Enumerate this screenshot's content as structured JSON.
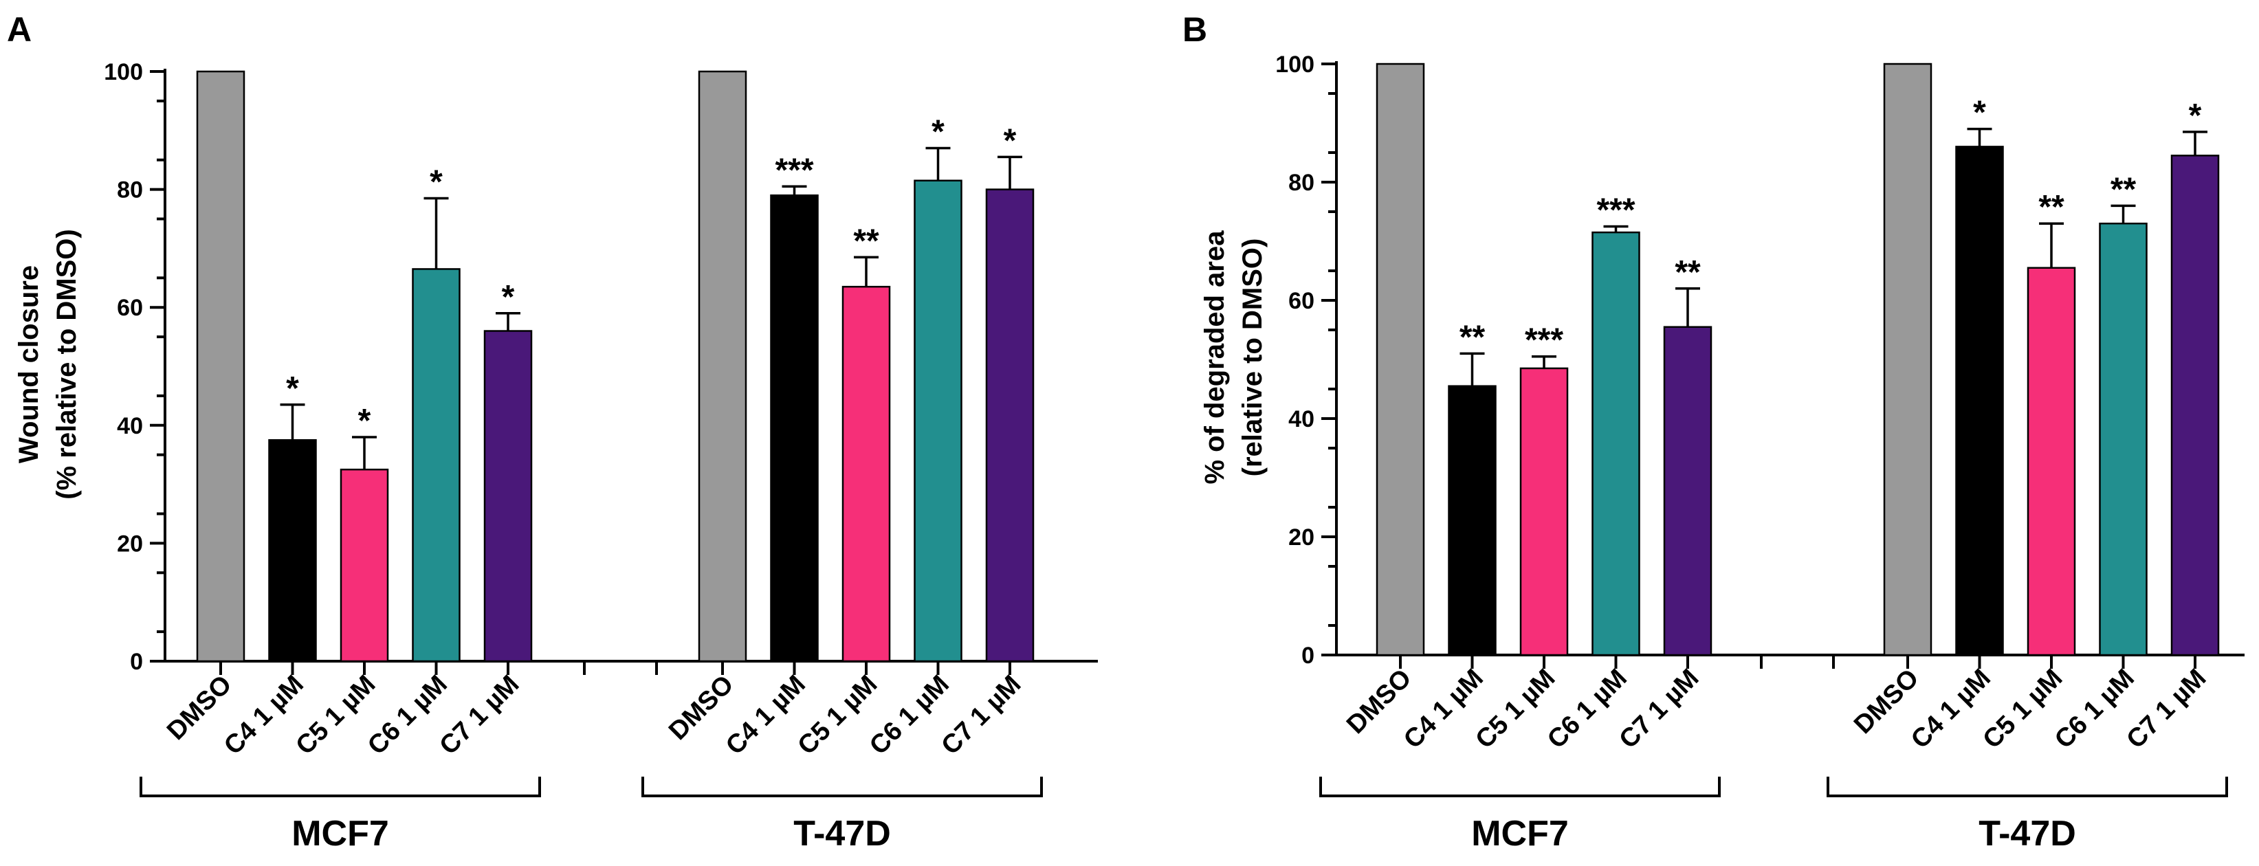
{
  "chart_data": [
    {
      "type": "bar",
      "panel_label": "A",
      "ylabel_lines": [
        "Wound closure",
        "(% relative to DMSO)"
      ],
      "ylim": [
        0,
        100
      ],
      "yticks": [
        0,
        20,
        40,
        60,
        80,
        100
      ],
      "grid": false,
      "groups": [
        {
          "name": "MCF7",
          "categories": [
            "DMSO",
            "C4 1 µM",
            "C5 1 µM",
            "C6 1 µM",
            "C7 1 µM"
          ],
          "values": [
            100,
            37.5,
            32.5,
            66.5,
            56
          ],
          "errors": [
            0,
            6,
            5.5,
            12,
            3
          ],
          "significance": [
            "",
            "*",
            "*",
            "*",
            "*"
          ]
        },
        {
          "name": "T-47D",
          "categories": [
            "DMSO",
            "C4 1 µM",
            "C5 1 µM",
            "C6 1 µM",
            "C7 1 µM"
          ],
          "values": [
            100,
            79,
            63.5,
            81.5,
            80
          ],
          "errors": [
            0,
            1.5,
            5,
            5.5,
            5.5
          ],
          "significance": [
            "",
            "***",
            "**",
            "*",
            "*"
          ]
        }
      ]
    },
    {
      "type": "bar",
      "panel_label": "B",
      "ylabel_lines": [
        "% of degraded area",
        "(relative to DMSO)"
      ],
      "ylim": [
        0,
        100
      ],
      "yticks": [
        0,
        20,
        40,
        60,
        80,
        100
      ],
      "grid": false,
      "groups": [
        {
          "name": "MCF7",
          "categories": [
            "DMSO",
            "C4 1 µM",
            "C5 1 µM",
            "C6 1 µM",
            "C7 1 µM"
          ],
          "values": [
            100,
            45.5,
            48.5,
            71.5,
            55.5
          ],
          "errors": [
            0,
            5.5,
            2,
            1,
            6.5
          ],
          "significance": [
            "",
            "**",
            "***",
            "***",
            "**"
          ]
        },
        {
          "name": "T-47D",
          "categories": [
            "DMSO",
            "C4 1 µM",
            "C5 1 µM",
            "C6 1 µM",
            "C7 1 µM"
          ],
          "values": [
            100,
            86,
            65.5,
            73,
            84.5
          ],
          "errors": [
            0,
            3,
            7.5,
            3,
            4
          ],
          "significance": [
            "",
            "*",
            "**",
            "**",
            "*"
          ]
        }
      ]
    }
  ],
  "colors": {
    "DMSO": "#999999",
    "C4": "#000000",
    "C5": "#f62f78",
    "C6": "#228f8f",
    "C7": "#4a1879"
  }
}
